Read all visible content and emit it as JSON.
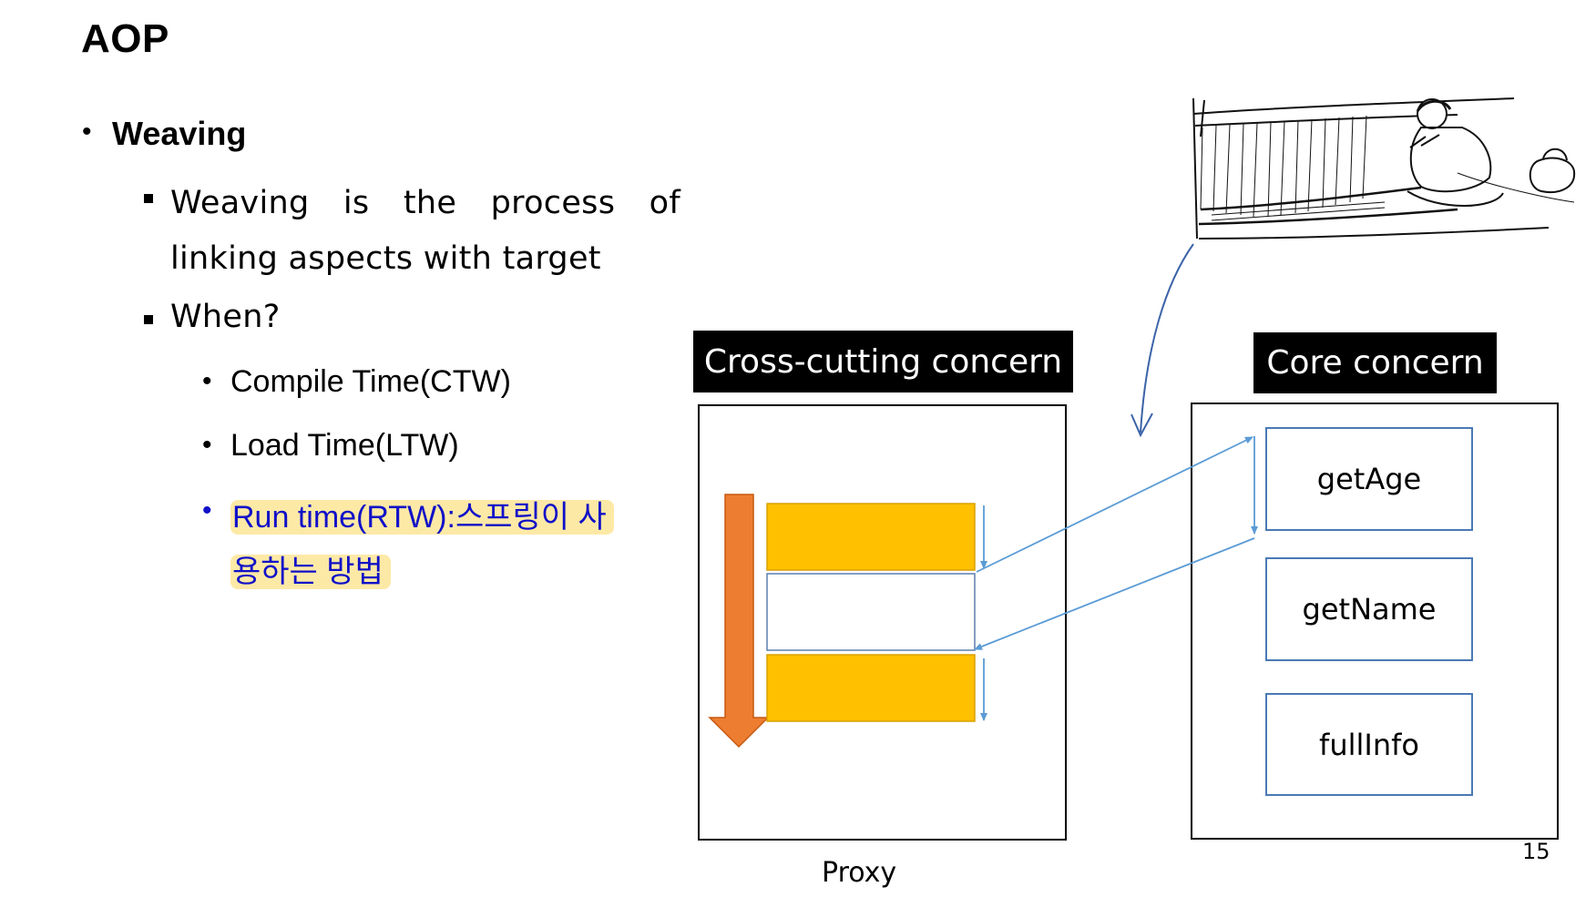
{
  "title": "AOP",
  "bullets": {
    "weaving": "Weaving",
    "definition": "Weaving is the process of linking aspects with target",
    "when": "When?",
    "options": [
      "Compile Time(CTW)",
      "Load Time(LTW)"
    ],
    "runtime": "Run time(RTW):스프링이 사용하는 방법"
  },
  "diagram": {
    "cross_cutting_label": "Cross-cutting concern",
    "core_label": "Core concern",
    "methods": [
      "getAge",
      "getName",
      "fullInfo"
    ],
    "proxy_label": "Proxy"
  },
  "page_number": "15",
  "colors": {
    "orange_arrow": "#ed7d31",
    "yellow_block": "#ffc000",
    "line_blue": "#5b9bd5",
    "highlight": "#fde9a6",
    "runtime_text": "#1010c8"
  }
}
